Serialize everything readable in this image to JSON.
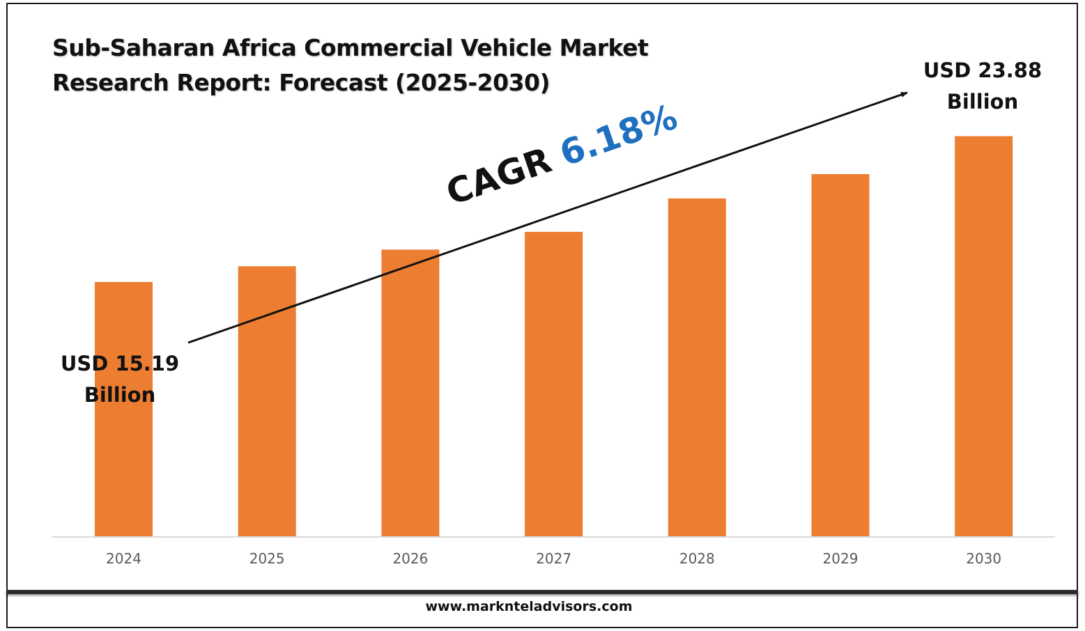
{
  "colors": {
    "bar": "#ED7D31",
    "axis": "#D9D9D9",
    "tick_text": "#595959",
    "cagr_value": "#1F6FC0"
  },
  "title_lines": [
    "Sub-Saharan Africa Commercial Vehicle Market",
    "Research Report: Forecast (2025-2030)"
  ],
  "cagr": {
    "label": "CAGR",
    "value": "6.18%"
  },
  "callouts": {
    "start": {
      "line1": "USD 15.19",
      "line2": "Billion"
    },
    "end": {
      "line1": "USD 23.88",
      "line2": "Billion"
    }
  },
  "footer": {
    "url": "www.marknteladvisors.com"
  },
  "chart_data": {
    "type": "bar",
    "categories": [
      "2024",
      "2025",
      "2026",
      "2027",
      "2028",
      "2029",
      "2030"
    ],
    "values": [
      15.19,
      16.13,
      17.12,
      18.18,
      20.17,
      21.62,
      23.88
    ],
    "title": "Sub-Saharan Africa Commercial Vehicle Market Research Report: Forecast (2025-2030)",
    "xlabel": "",
    "ylabel": "",
    "ylim": [
      0,
      26
    ],
    "grid": false,
    "legend": "none"
  }
}
